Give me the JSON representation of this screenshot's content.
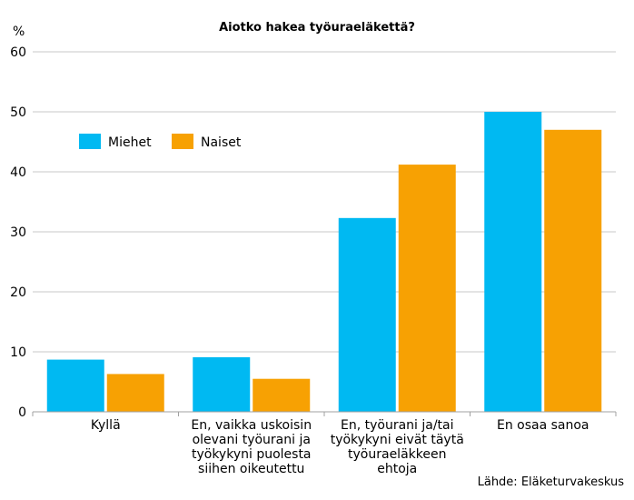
{
  "chart_data": {
    "type": "bar",
    "title": "Aiotko hakea työuraeläkettä?",
    "ylabel": "%",
    "xlabel": "",
    "ylim": [
      0,
      60
    ],
    "yticks": [
      0,
      10,
      20,
      30,
      40,
      50,
      60
    ],
    "grid": true,
    "legend_position": "top-left",
    "categories": [
      [
        "Kyllä"
      ],
      [
        "En, vaikka uskoisin",
        "olevani työurani ja",
        "työkykyni puolesta",
        "siihen oikeutettu"
      ],
      [
        "En, työurani ja/tai",
        "työkykyni eivät täytä",
        "työuraeläkkeen",
        "ehtoja"
      ],
      [
        "En osaa sanoa"
      ]
    ],
    "series": [
      {
        "name": "Miehet",
        "color": "#00B9F2",
        "values": [
          8.7,
          9.1,
          32.3,
          50.0
        ]
      },
      {
        "name": "Naiset",
        "color": "#F7A103",
        "values": [
          6.3,
          5.5,
          41.2,
          47.0
        ]
      }
    ],
    "source": "Lähde: Eläketurvakeskus"
  }
}
